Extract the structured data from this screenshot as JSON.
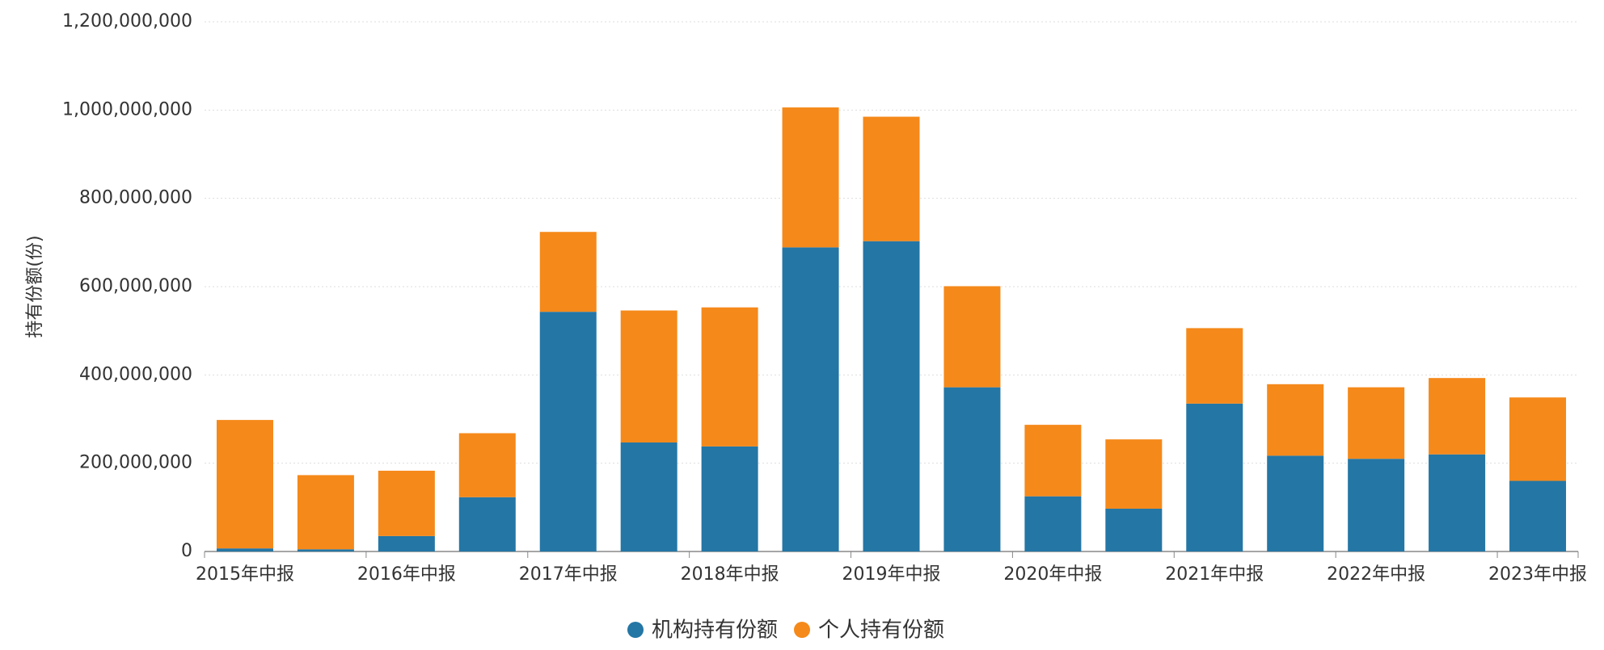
{
  "chart_data": {
    "type": "stacked_bar",
    "y_label": "持有份额(份)",
    "categories": [
      "2015年中报",
      null,
      "2016年中报",
      null,
      "2017年中报",
      null,
      "2018年中报",
      null,
      "2019年中报",
      null,
      "2020年中报",
      null,
      "2021年中报",
      null,
      "2022年中报",
      null,
      "2023年中报"
    ],
    "series": [
      {
        "name": "机构持有份额",
        "color": "#2476a5",
        "values": [
          7000000,
          5000000,
          35000000,
          123000000,
          543000000,
          247000000,
          238000000,
          689000000,
          703000000,
          372000000,
          125000000,
          97000000,
          335000000,
          217000000,
          210000000,
          220000000,
          160000000
        ]
      },
      {
        "name": "个人持有份额",
        "color": "#f5891a",
        "values": [
          291000000,
          168000000,
          148000000,
          145000000,
          181000000,
          299000000,
          315000000,
          317000000,
          282000000,
          229000000,
          162000000,
          157000000,
          171000000,
          162000000,
          162000000,
          173000000,
          189000000
        ]
      }
    ],
    "ylim": [
      0,
      1200000000
    ],
    "yticks": [
      0,
      {
        "value": 200000000,
        "label": "200,000,000"
      },
      {
        "value": 400000000,
        "label": "400,000,000"
      },
      {
        "value": 600000000,
        "label": "600,000,000"
      },
      {
        "value": 800000000,
        "label": "800,000,000"
      },
      {
        "value": 1000000000,
        "label": "1,000,000,000"
      },
      {
        "value": 1200000000,
        "label": "1,200,000,000"
      }
    ],
    "grid": true
  }
}
